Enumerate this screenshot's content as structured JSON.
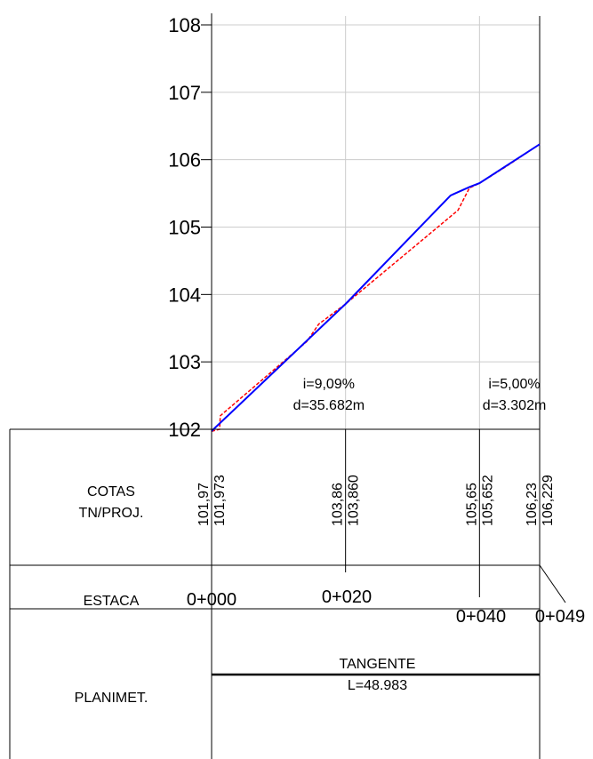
{
  "chart_data": {
    "type": "line",
    "x_range": [
      0,
      48.983
    ],
    "ylim": [
      102,
      108
    ],
    "yticks": [
      102,
      103,
      104,
      105,
      106,
      107,
      108
    ],
    "xgrid_stations": [
      0,
      20,
      40,
      48.983
    ],
    "series": [
      {
        "key": "terrain",
        "color": "#ff0000",
        "style": "dashed",
        "points": [
          [
            0,
            101.97
          ],
          [
            1.2,
            102.0
          ],
          [
            1.3,
            102.2
          ],
          [
            14.2,
            103.3
          ],
          [
            16,
            103.56
          ],
          [
            20,
            103.86
          ],
          [
            36.8,
            105.25
          ],
          [
            38.5,
            105.58
          ],
          [
            40,
            105.65
          ],
          [
            44,
            105.9
          ],
          [
            48.983,
            106.23
          ]
        ]
      },
      {
        "key": "project",
        "color": "#0000ff",
        "style": "solid",
        "points": [
          [
            0,
            101.973
          ],
          [
            20,
            103.86
          ],
          [
            35.682,
            105.47
          ],
          [
            38.5,
            105.595
          ],
          [
            40,
            105.652
          ],
          [
            48.983,
            106.229
          ]
        ]
      }
    ],
    "annotations": [
      {
        "grade": "i=9,09%",
        "dist": "d=35.682m"
      },
      {
        "grade": "i=5,00%",
        "dist": "d=3.302m"
      }
    ]
  },
  "table": {
    "rows": [
      {
        "label_lines": [
          "COTAS",
          "TN/PROJ."
        ]
      },
      {
        "label_lines": [
          "ESTACA"
        ]
      },
      {
        "label_lines": [
          "PLANIMET."
        ]
      }
    ],
    "cotas": [
      {
        "station": 0,
        "tn": "101,97",
        "proj": "101,973"
      },
      {
        "station": 20,
        "tn": "103,86",
        "proj": "103,860"
      },
      {
        "station": 40,
        "tn": "105,65",
        "proj": "105,652"
      },
      {
        "station": 48.983,
        "tn": "106,23",
        "proj": "106,229"
      }
    ],
    "estacas": [
      "0+000",
      "0+020",
      "0+040",
      "0+049"
    ],
    "planimetria": {
      "label": "TANGENTE",
      "length": "L=48.983"
    }
  }
}
